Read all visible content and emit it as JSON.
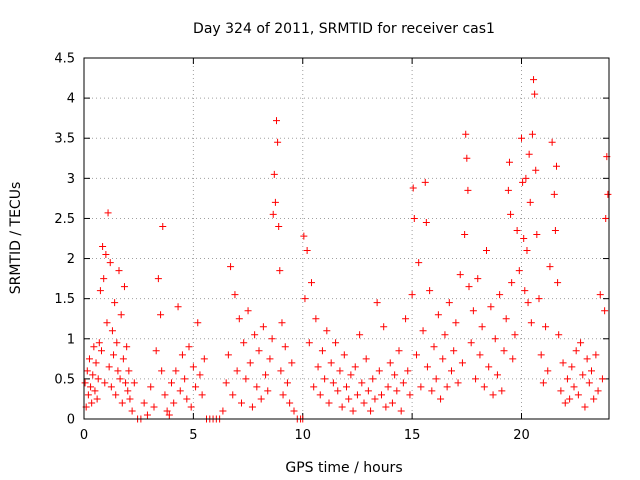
{
  "chart_data": {
    "type": "scatter",
    "title": "Day 324 of 2011, SRMTID for receiver cas1",
    "xlabel": "GPS time / hours",
    "ylabel": "SRMTID / TECUs",
    "xlim": [
      0,
      24
    ],
    "ylim": [
      0,
      4.5
    ],
    "x_ticks": [
      0,
      5,
      10,
      15,
      20
    ],
    "x_tick_labels": [
      "0",
      "5",
      "10",
      "15",
      "20"
    ],
    "y_ticks": [
      0,
      0.5,
      1,
      1.5,
      2,
      2.5,
      3,
      3.5,
      4,
      4.5
    ],
    "y_tick_labels": [
      "0",
      "0.5",
      "1",
      "1.5",
      "2",
      "2.5",
      "3",
      "3.5",
      "4",
      "4.5"
    ],
    "grid": true,
    "marker": "plus",
    "series": [
      {
        "name": "SRMTID",
        "color": "#ff0000",
        "x": [
          0.05,
          0.1,
          0.15,
          0.2,
          0.25,
          0.3,
          0.35,
          0.4,
          0.45,
          0.5,
          0.55,
          0.6,
          0.65,
          0.7,
          0.75,
          0.8,
          0.85,
          0.9,
          0.95,
          1.0,
          1.05,
          1.1,
          1.15,
          1.2,
          1.25,
          1.3,
          1.35,
          1.4,
          1.45,
          1.5,
          1.55,
          1.6,
          1.65,
          1.7,
          1.75,
          1.8,
          1.85,
          1.9,
          1.95,
          2.0,
          2.05,
          2.1,
          2.2,
          2.3,
          2.45,
          2.6,
          2.75,
          2.9,
          3.05,
          3.2,
          3.3,
          3.4,
          3.5,
          3.55,
          3.6,
          3.7,
          3.8,
          3.9,
          4.0,
          4.1,
          4.2,
          4.3,
          4.4,
          4.5,
          4.6,
          4.7,
          4.8,
          4.9,
          5.0,
          5.1,
          5.2,
          5.3,
          5.4,
          5.5,
          5.6,
          5.75,
          5.9,
          6.05,
          6.2,
          6.35,
          6.5,
          6.6,
          6.7,
          6.8,
          6.9,
          7.0,
          7.1,
          7.2,
          7.3,
          7.4,
          7.5,
          7.6,
          7.7,
          7.8,
          7.9,
          8.0,
          8.1,
          8.2,
          8.3,
          8.4,
          8.5,
          8.6,
          8.65,
          8.7,
          8.75,
          8.8,
          8.85,
          8.9,
          8.95,
          9.0,
          9.05,
          9.1,
          9.2,
          9.3,
          9.4,
          9.5,
          9.6,
          9.75,
          9.9,
          10.0,
          10.05,
          10.1,
          10.2,
          10.3,
          10.4,
          10.5,
          10.6,
          10.7,
          10.8,
          10.9,
          11.0,
          11.1,
          11.2,
          11.3,
          11.4,
          11.5,
          11.6,
          11.7,
          11.8,
          11.9,
          12.0,
          12.1,
          12.2,
          12.3,
          12.4,
          12.5,
          12.6,
          12.7,
          12.8,
          12.9,
          13.0,
          13.1,
          13.2,
          13.3,
          13.4,
          13.5,
          13.6,
          13.7,
          13.8,
          13.9,
          14.0,
          14.1,
          14.2,
          14.3,
          14.4,
          14.5,
          14.6,
          14.7,
          14.8,
          14.9,
          15.0,
          15.05,
          15.1,
          15.2,
          15.3,
          15.4,
          15.5,
          15.6,
          15.65,
          15.7,
          15.8,
          15.9,
          16.0,
          16.1,
          16.2,
          16.3,
          16.4,
          16.5,
          16.6,
          16.7,
          16.8,
          16.9,
          17.0,
          17.1,
          17.2,
          17.3,
          17.4,
          17.45,
          17.5,
          17.55,
          17.6,
          17.7,
          17.8,
          17.9,
          18.0,
          18.1,
          18.2,
          18.3,
          18.4,
          18.5,
          18.6,
          18.7,
          18.8,
          18.9,
          19.0,
          19.1,
          19.2,
          19.3,
          19.4,
          19.45,
          19.5,
          19.55,
          19.6,
          19.7,
          19.8,
          19.9,
          20.0,
          20.05,
          20.1,
          20.15,
          20.2,
          20.25,
          20.3,
          20.35,
          20.4,
          20.45,
          20.5,
          20.55,
          20.6,
          20.65,
          20.7,
          20.8,
          20.9,
          21.0,
          21.1,
          21.2,
          21.3,
          21.4,
          21.5,
          21.55,
          21.6,
          21.65,
          21.7,
          21.8,
          21.9,
          22.0,
          22.1,
          22.2,
          22.3,
          22.4,
          22.5,
          22.6,
          22.7,
          22.8,
          22.9,
          23.0,
          23.1,
          23.2,
          23.3,
          23.4,
          23.5,
          23.6,
          23.7,
          23.8,
          23.85,
          23.9,
          23.95
        ],
        "y": [
          0.45,
          0.15,
          0.6,
          0.3,
          0.75,
          0.4,
          0.2,
          0.55,
          0.9,
          0.35,
          0.7,
          0.25,
          0.5,
          0.95,
          1.6,
          0.85,
          2.15,
          1.75,
          0.45,
          2.05,
          1.2,
          2.57,
          0.65,
          1.95,
          0.4,
          1.1,
          0.8,
          1.45,
          0.3,
          0.95,
          0.6,
          1.85,
          0.5,
          1.3,
          0.2,
          0.75,
          1.65,
          0.45,
          0.9,
          0.35,
          0.6,
          0.25,
          0.1,
          0.45,
          0.0,
          0.0,
          0.2,
          0.05,
          0.4,
          0.15,
          0.85,
          1.75,
          1.3,
          0.6,
          2.4,
          0.3,
          0.1,
          0.05,
          0.45,
          0.2,
          0.6,
          1.4,
          0.35,
          0.8,
          0.5,
          0.25,
          0.9,
          0.15,
          0.65,
          0.4,
          1.2,
          0.55,
          0.3,
          0.75,
          0.0,
          0.0,
          0.0,
          0.0,
          0.0,
          0.1,
          0.45,
          0.8,
          1.9,
          0.3,
          1.55,
          0.6,
          1.25,
          0.2,
          0.95,
          0.5,
          1.35,
          0.7,
          0.15,
          1.05,
          0.4,
          0.85,
          0.25,
          1.15,
          0.55,
          0.35,
          0.75,
          1.0,
          2.55,
          3.05,
          2.7,
          3.72,
          3.45,
          2.4,
          1.85,
          0.6,
          1.2,
          0.3,
          0.9,
          0.45,
          0.2,
          0.7,
          0.1,
          0.0,
          0.0,
          0.0,
          2.28,
          1.5,
          2.1,
          0.95,
          1.7,
          0.4,
          1.25,
          0.65,
          0.3,
          0.85,
          0.5,
          1.1,
          0.2,
          0.7,
          0.45,
          0.95,
          0.35,
          0.6,
          0.15,
          0.8,
          0.4,
          0.25,
          0.55,
          0.1,
          0.65,
          0.3,
          1.05,
          0.45,
          0.2,
          0.75,
          0.35,
          0.1,
          0.5,
          0.25,
          1.45,
          0.6,
          0.3,
          1.15,
          0.15,
          0.4,
          0.7,
          0.2,
          0.55,
          0.35,
          0.85,
          0.1,
          0.45,
          1.25,
          0.6,
          0.3,
          1.55,
          2.88,
          2.5,
          0.8,
          1.95,
          0.4,
          1.1,
          2.95,
          2.45,
          0.65,
          1.6,
          0.35,
          0.9,
          0.5,
          1.3,
          0.25,
          0.75,
          1.05,
          0.4,
          1.45,
          0.6,
          0.85,
          1.2,
          0.45,
          1.8,
          0.7,
          2.3,
          3.55,
          3.25,
          2.85,
          1.65,
          0.95,
          1.35,
          0.5,
          1.75,
          0.8,
          1.15,
          0.4,
          2.1,
          0.65,
          1.4,
          0.3,
          1.0,
          0.55,
          1.55,
          0.35,
          0.85,
          1.25,
          2.85,
          3.2,
          2.55,
          1.7,
          0.75,
          1.05,
          2.35,
          1.85,
          3.5,
          2.95,
          2.25,
          1.6,
          3.0,
          2.1,
          1.45,
          3.3,
          2.7,
          1.2,
          3.55,
          4.23,
          4.05,
          3.1,
          2.3,
          1.5,
          0.8,
          0.45,
          1.15,
          0.6,
          1.9,
          3.45,
          2.8,
          2.35,
          3.15,
          1.7,
          1.05,
          0.35,
          0.7,
          0.2,
          0.5,
          0.25,
          0.65,
          0.4,
          0.85,
          0.3,
          0.95,
          0.55,
          0.15,
          0.75,
          0.45,
          0.6,
          0.25,
          0.8,
          0.35,
          1.55,
          0.5,
          1.35,
          2.5,
          3.27,
          2.8
        ]
      }
    ]
  }
}
